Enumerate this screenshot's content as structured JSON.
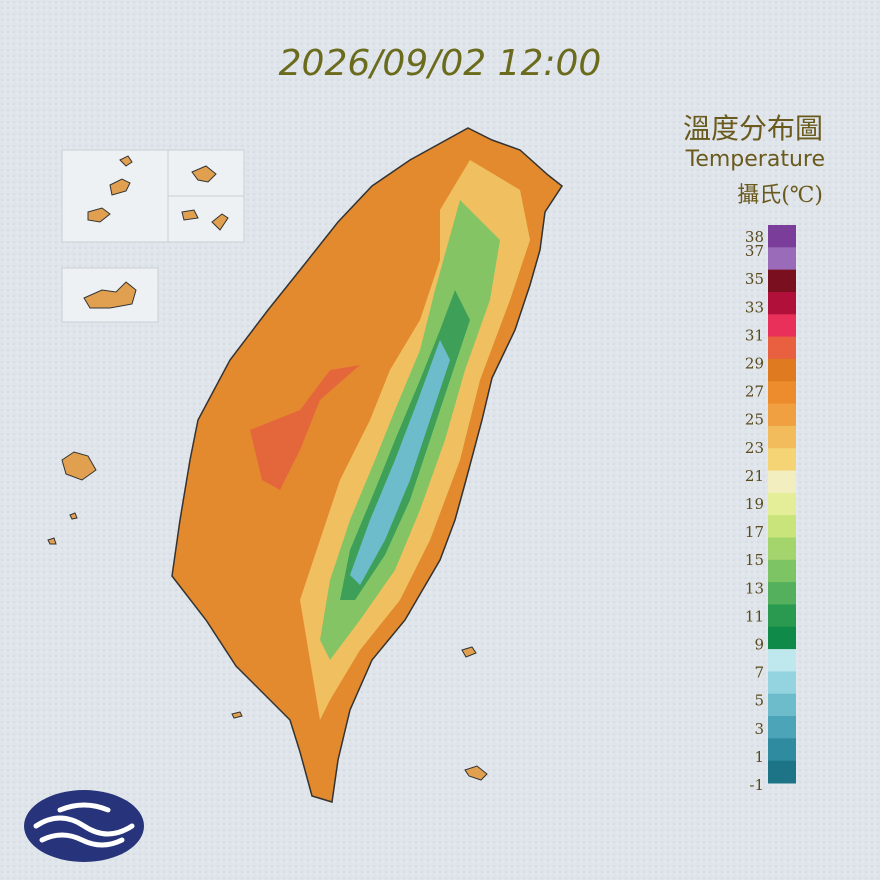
{
  "header": {
    "timestamp": "2026/09/02 12:00"
  },
  "legend": {
    "title": "溫度分布圖",
    "subtitle": "Temperature",
    "unit": "攝氏(℃)",
    "ticks": [
      38,
      37,
      35,
      33,
      31,
      29,
      27,
      25,
      23,
      21,
      19,
      17,
      15,
      13,
      11,
      9,
      7,
      5,
      3,
      1,
      -1
    ],
    "colors": [
      "#7a3d9a",
      "#9a6bb8",
      "#7a0f1f",
      "#b0103a",
      "#e8305a",
      "#e86040",
      "#e07a20",
      "#ec8c2c",
      "#f0a040",
      "#f2bc5c",
      "#f4d474",
      "#f2eec0",
      "#e4ee98",
      "#c8e47a",
      "#a4d46c",
      "#7cc464",
      "#54b05c",
      "#2a9a50",
      "#108a48",
      "#bfe8ee",
      "#94d4e0",
      "#6cbccc",
      "#4ca4b8",
      "#2f8ca0",
      "#1c7486"
    ]
  }
}
